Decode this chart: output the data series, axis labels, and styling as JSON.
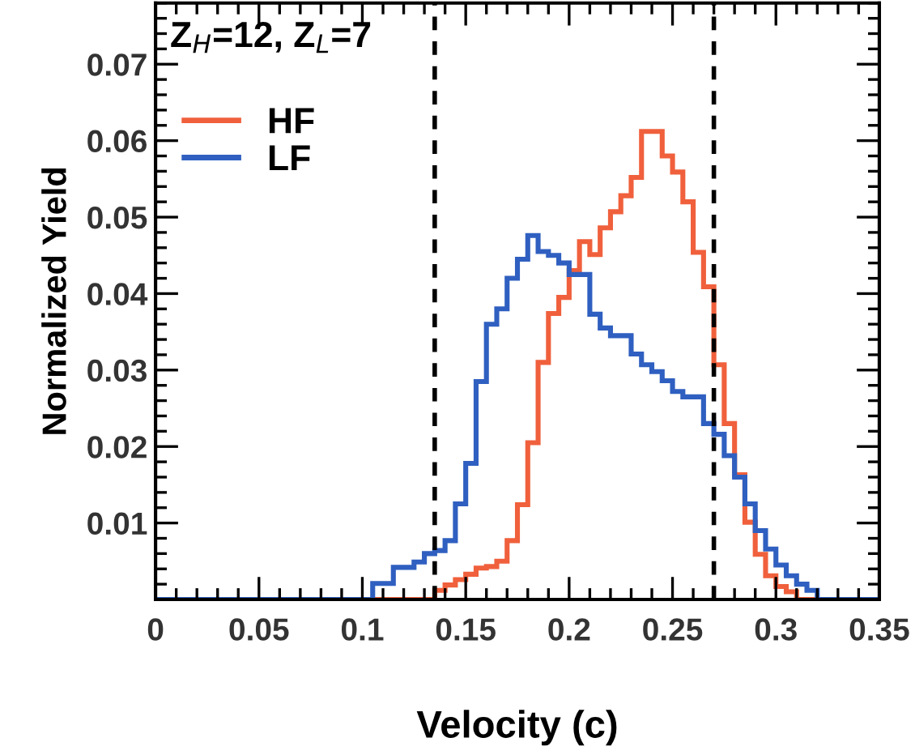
{
  "chart_data": {
    "type": "histogram",
    "xlabel": "Velocity (c)",
    "ylabel": "Normalized Yield",
    "annotations": [
      "Z$_{H}$=12, Z$_{L}$=7"
    ],
    "bins": [
      0,
      0.005,
      0.01,
      0.015,
      0.02,
      0.025,
      0.03,
      0.035,
      0.04,
      0.045,
      0.05,
      0.055,
      0.06,
      0.065,
      0.07,
      0.075,
      0.08,
      0.085,
      0.09,
      0.095,
      0.1,
      0.105,
      0.11,
      0.115,
      0.12,
      0.125,
      0.13,
      0.135,
      0.14,
      0.145,
      0.15,
      0.155,
      0.16,
      0.165,
      0.17,
      0.175,
      0.18,
      0.185,
      0.19,
      0.195,
      0.2,
      0.205,
      0.21,
      0.215,
      0.22,
      0.225,
      0.23,
      0.235,
      0.24,
      0.245,
      0.25,
      0.255,
      0.26,
      0.265,
      0.27,
      0.275,
      0.28,
      0.285,
      0.29,
      0.295,
      0.3,
      0.305,
      0.31,
      0.315,
      0.32,
      0.325,
      0.33,
      0.335,
      0.34,
      0.345,
      0.35
    ],
    "series": [
      {
        "name": "HF",
        "color": "#f0603c",
        "values": [
          0,
          0,
          0,
          0,
          0,
          0,
          0,
          0,
          0,
          0,
          0,
          0,
          0,
          0,
          0,
          0,
          0,
          0,
          0,
          0,
          0,
          0,
          0,
          0,
          0,
          0,
          0,
          0.0012,
          0.0019,
          0.0026,
          0.0033,
          0.0041,
          0.0043,
          0.005,
          0.0077,
          0.0124,
          0.0205,
          0.031,
          0.0374,
          0.0395,
          0.043,
          0.0468,
          0.0451,
          0.0486,
          0.0507,
          0.0528,
          0.0552,
          0.0612,
          0.0612,
          0.058,
          0.0559,
          0.052,
          0.0454,
          0.0409,
          0.0307,
          0.023,
          0.0163,
          0.0101,
          0.0059,
          0.0031,
          0.0017,
          0.001,
          0,
          0,
          0,
          0,
          0,
          0,
          0,
          0
        ]
      },
      {
        "name": "LF",
        "color": "#2f5fc0",
        "values": [
          0,
          0,
          0,
          0,
          0,
          0,
          0,
          0,
          0,
          0,
          0,
          0,
          0,
          0,
          0,
          0,
          0,
          0,
          0,
          0,
          0,
          0.0021,
          0.0021,
          0.0042,
          0.0042,
          0.0049,
          0.006,
          0.0064,
          0.0077,
          0.0125,
          0.0178,
          0.0285,
          0.036,
          0.038,
          0.042,
          0.0445,
          0.0476,
          0.0455,
          0.045,
          0.044,
          0.0425,
          0.0425,
          0.0373,
          0.0355,
          0.0345,
          0.0345,
          0.0321,
          0.0307,
          0.0298,
          0.0286,
          0.0272,
          0.0265,
          0.0265,
          0.023,
          0.0216,
          0.0188,
          0.016,
          0.0125,
          0.009,
          0.0066,
          0.0045,
          0.0031,
          0.002,
          0.0012,
          0,
          0,
          0,
          0,
          0,
          0
        ]
      }
    ],
    "ref_lines": [
      {
        "axis": "x",
        "value": 0.135,
        "color": "#000000",
        "line_style": "dashed"
      },
      {
        "axis": "x",
        "value": 0.27,
        "color": "#000000",
        "line_style": "dashed"
      }
    ],
    "xlim": [
      0,
      0.35
    ],
    "xticks": [
      0,
      0.05,
      0.1,
      0.15,
      0.2,
      0.25,
      0.3,
      0.35
    ],
    "ylim": [
      0,
      0.078
    ],
    "yticks": [
      0.01,
      0.02,
      0.03,
      0.04,
      0.05,
      0.06,
      0.07
    ],
    "grid": false,
    "legend": "top left"
  }
}
